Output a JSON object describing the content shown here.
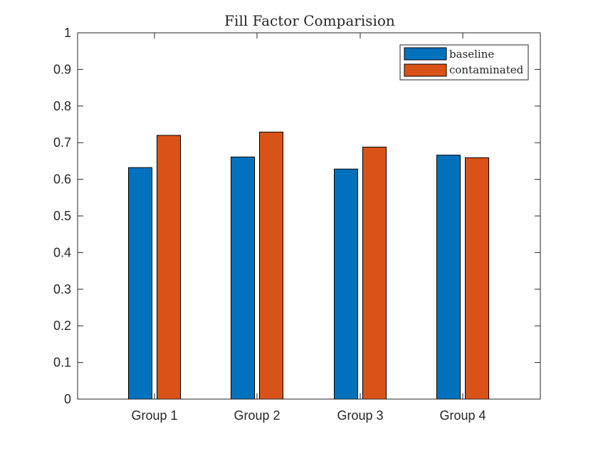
{
  "chart_data": {
    "type": "bar",
    "title": "Fill Factor Comparision",
    "xlabel": "",
    "ylabel": "",
    "categories": [
      "Group 1",
      "Group 2",
      "Group 3",
      "Group 4"
    ],
    "series": [
      {
        "name": "baseline",
        "color": "#0072BD",
        "values": [
          0.632,
          0.661,
          0.628,
          0.666
        ]
      },
      {
        "name": "contaminated",
        "color": "#D95319",
        "values": [
          0.72,
          0.729,
          0.688,
          0.659
        ]
      }
    ],
    "ylim": [
      0,
      1
    ],
    "yticks": [
      "0",
      "0.1",
      "0.2",
      "0.3",
      "0.4",
      "0.5",
      "0.6",
      "0.7",
      "0.8",
      "0.9",
      "1"
    ],
    "grid": false,
    "legend_position": "top-right"
  }
}
